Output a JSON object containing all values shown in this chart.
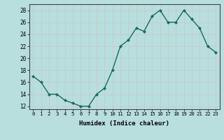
{
  "x": [
    0,
    1,
    2,
    3,
    4,
    5,
    6,
    7,
    8,
    9,
    10,
    11,
    12,
    13,
    14,
    15,
    16,
    17,
    18,
    19,
    20,
    21,
    22,
    23
  ],
  "y": [
    17,
    16,
    14,
    14,
    13,
    12.5,
    12,
    12,
    14,
    15,
    18,
    22,
    23,
    25,
    24.5,
    27,
    28,
    26,
    26,
    28,
    26.5,
    25,
    22,
    21
  ],
  "line_color": "#1a6b5a",
  "marker_color": "#1a6b5a",
  "bg_color": "#b8dede",
  "grid_color": "#c8c8c8",
  "xlabel": "Humidex (Indice chaleur)",
  "xlim": [
    -0.5,
    23.5
  ],
  "ylim": [
    11.5,
    29
  ],
  "yticks": [
    12,
    14,
    16,
    18,
    20,
    22,
    24,
    26,
    28
  ],
  "xticks": [
    0,
    1,
    2,
    3,
    4,
    5,
    6,
    7,
    8,
    9,
    10,
    11,
    12,
    13,
    14,
    15,
    16,
    17,
    18,
    19,
    20,
    21,
    22,
    23
  ]
}
